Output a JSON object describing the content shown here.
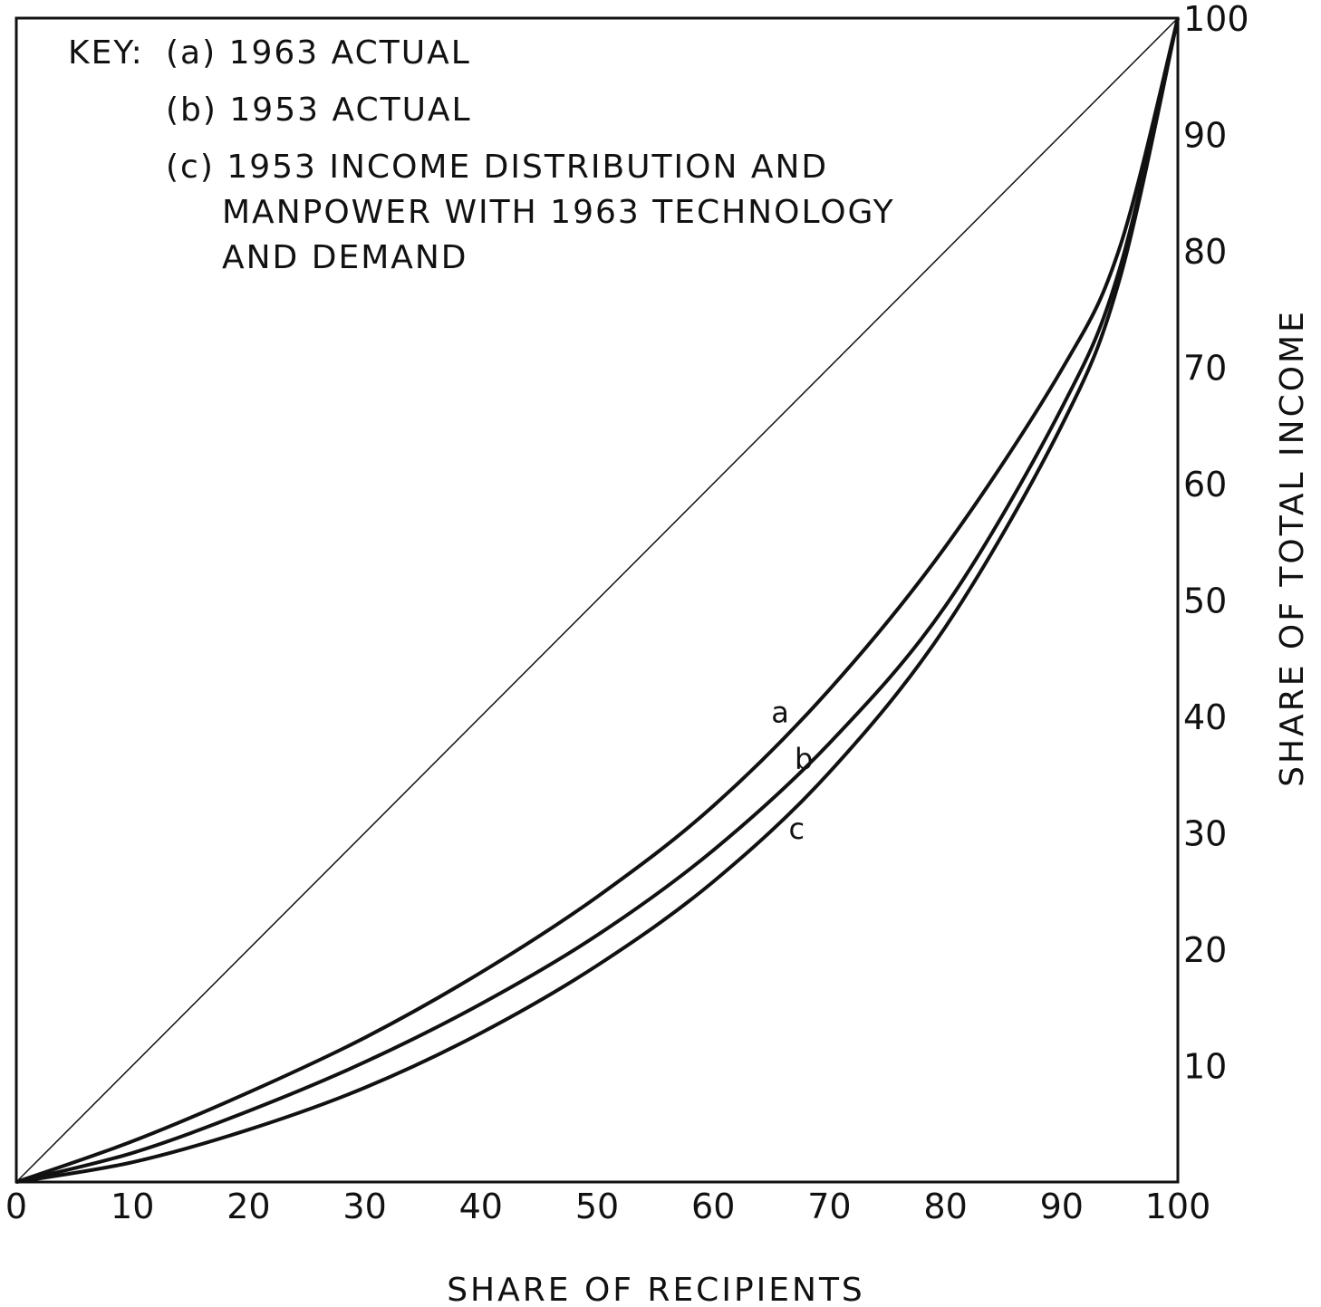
{
  "chart_data": {
    "type": "line",
    "xlabel": "SHARE OF RECIPIENTS",
    "ylabel": "SHARE OF TOTAL INCOME",
    "xlim": [
      0,
      100
    ],
    "ylim": [
      0,
      100
    ],
    "x_ticks": [
      "0",
      "10",
      "20",
      "30",
      "40",
      "50",
      "60",
      "70",
      "80",
      "90",
      "100"
    ],
    "y_ticks": [
      "10",
      "20",
      "30",
      "40",
      "50",
      "60",
      "70",
      "80",
      "90",
      "100"
    ],
    "key": {
      "prefix": "KEY:",
      "lines": [
        "(a) 1963 ACTUAL",
        "(b) 1953 ACTUAL",
        "(c) 1953 INCOME DISTRIBUTION AND",
        "MANPOWER WITH 1963 TECHNOLOGY",
        "AND DEMAND"
      ]
    },
    "equality_line": {
      "x": [
        0,
        100
      ],
      "y": [
        0,
        100
      ]
    },
    "series": [
      {
        "label": "a",
        "x": [
          0,
          10,
          20,
          30,
          40,
          50,
          60,
          70,
          80,
          90,
          95,
          100
        ],
        "y": [
          0,
          3.5,
          7.7,
          12.4,
          18.0,
          24.5,
          32.3,
          42.3,
          54.6,
          69.8,
          80.3,
          100
        ]
      },
      {
        "label": "b",
        "x": [
          0,
          10,
          20,
          30,
          40,
          50,
          60,
          70,
          80,
          90,
          95,
          100
        ],
        "y": [
          0,
          2.5,
          6.1,
          10.3,
          15.3,
          21.2,
          28.5,
          37.7,
          49.5,
          66.5,
          78.5,
          100
        ]
      },
      {
        "label": "c",
        "x": [
          0,
          10,
          20,
          30,
          40,
          50,
          60,
          70,
          80,
          90,
          95,
          100
        ],
        "y": [
          0,
          1.7,
          4.5,
          8.1,
          12.8,
          18.6,
          25.8,
          35.2,
          47.7,
          65.0,
          77.6,
          100
        ]
      }
    ],
    "curve_label_positions": [
      {
        "label": "a",
        "x": 65.0,
        "y": 39.5
      },
      {
        "label": "b",
        "x": 67.0,
        "y": 35.5
      },
      {
        "label": "c",
        "x": 66.5,
        "y": 29.5
      }
    ]
  }
}
